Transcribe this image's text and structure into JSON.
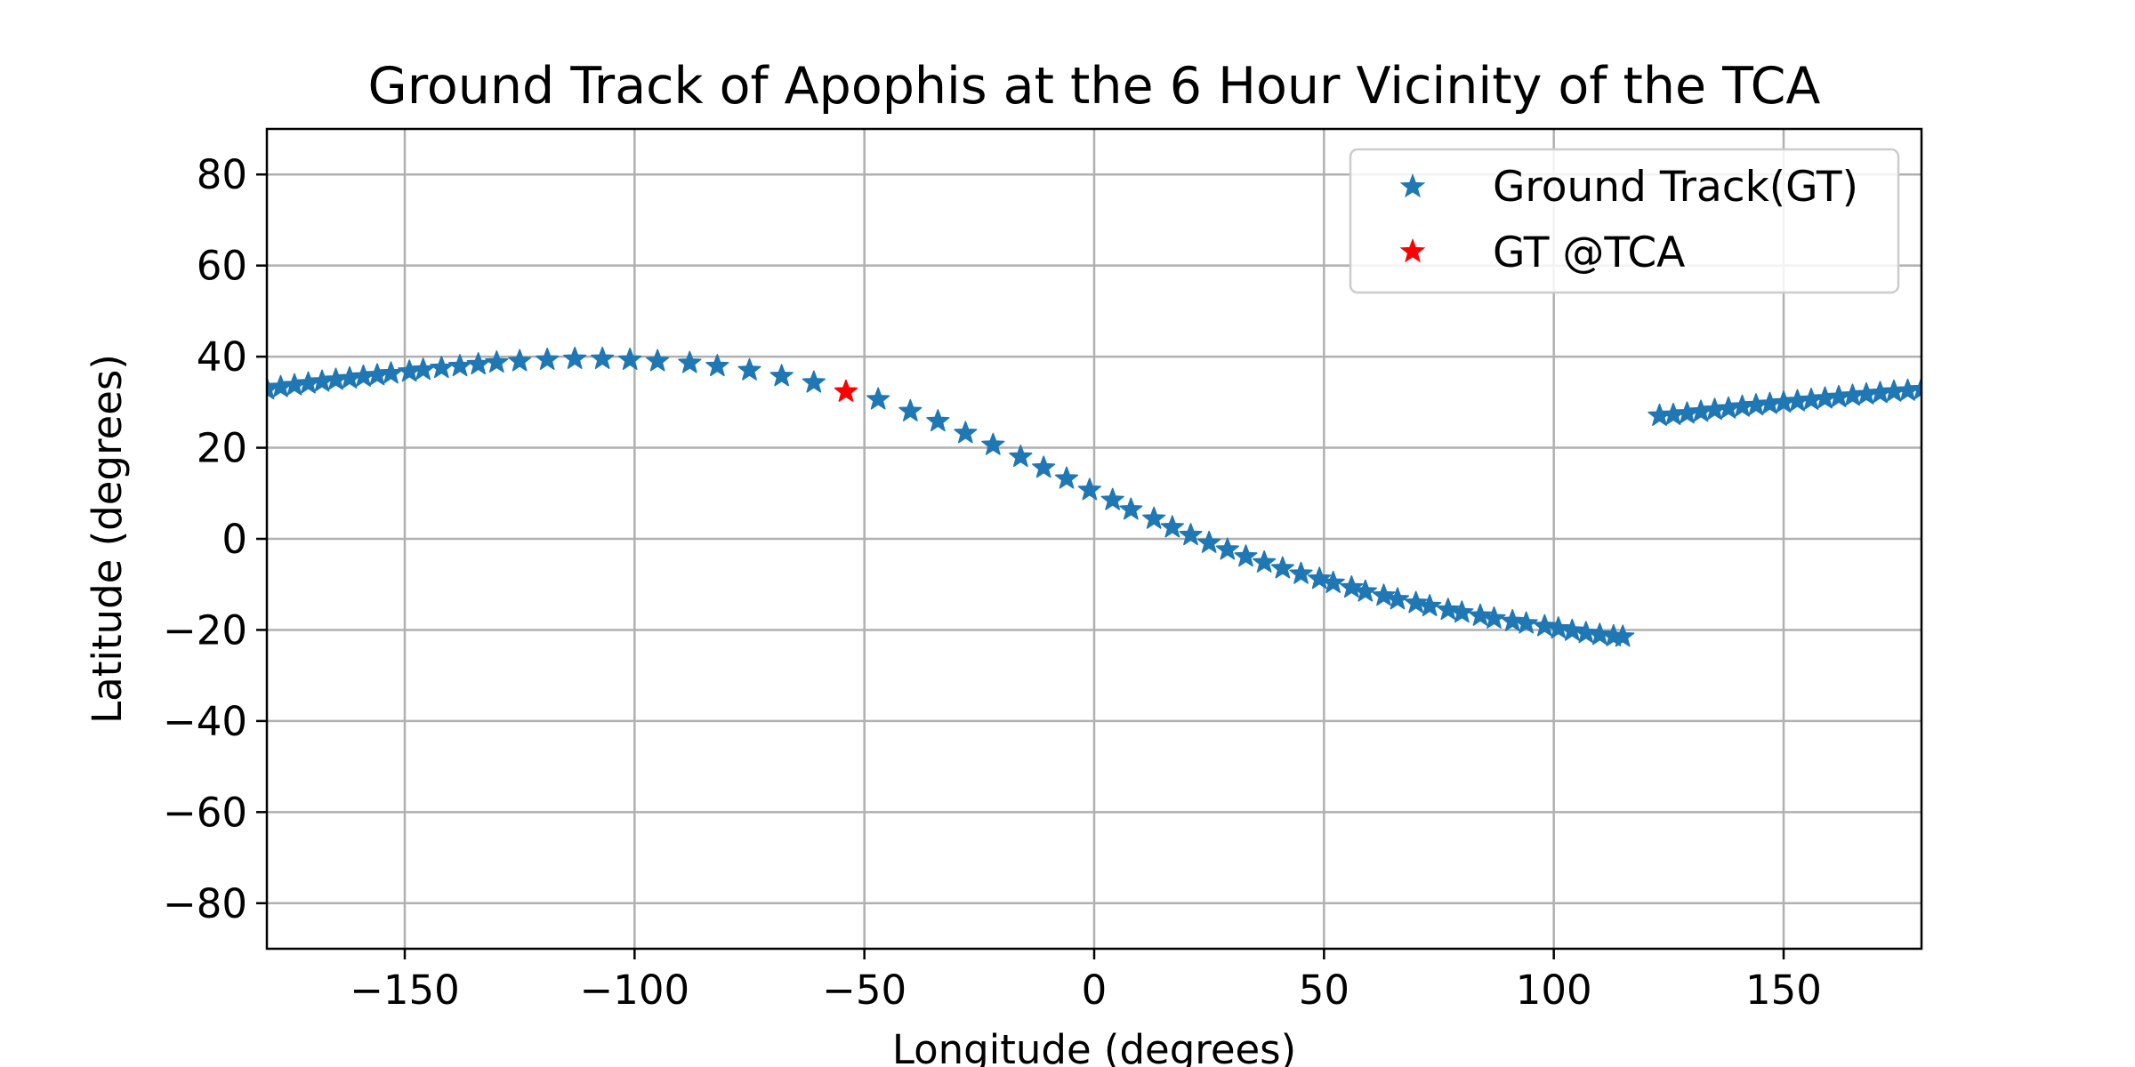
{
  "chart_data": {
    "type": "scatter",
    "title": "Ground Track of Apophis at the 6 Hour Vicinity of the TCA",
    "xlabel": "Longitude (degrees)",
    "ylabel": "Latitude (degrees)",
    "xlim": [
      -180,
      180
    ],
    "ylim": [
      -90,
      90
    ],
    "xticks": [
      -150,
      -100,
      -50,
      0,
      50,
      100,
      150
    ],
    "xtick_labels": [
      "−150",
      "−100",
      "−50",
      "0",
      "50",
      "100",
      "150"
    ],
    "yticks": [
      -80,
      -60,
      -40,
      -20,
      0,
      20,
      40,
      60,
      80
    ],
    "ytick_labels": [
      "−80",
      "−60",
      "−40",
      "−20",
      "0",
      "20",
      "40",
      "60",
      "80"
    ],
    "grid": true,
    "legend_position": "top-right",
    "marker": "star",
    "series": [
      {
        "name": "Ground Track(GT)",
        "color": "#1f77b4",
        "points": [
          [
            -180,
            32.8
          ],
          [
            -177,
            33.3
          ],
          [
            -174,
            33.7
          ],
          [
            -171,
            34.1
          ],
          [
            -168,
            34.5
          ],
          [
            -165,
            34.9
          ],
          [
            -162,
            35.2
          ],
          [
            -159,
            35.6
          ],
          [
            -156,
            35.9
          ],
          [
            -153,
            36.3
          ],
          [
            -149,
            36.7
          ],
          [
            -146,
            37.1
          ],
          [
            -142,
            37.5
          ],
          [
            -138,
            37.9
          ],
          [
            -134,
            38.3
          ],
          [
            -130,
            38.7
          ],
          [
            -125,
            39.0
          ],
          [
            -119,
            39.3
          ],
          [
            -113,
            39.5
          ],
          [
            -107,
            39.5
          ],
          [
            -101,
            39.3
          ],
          [
            -95,
            39.0
          ],
          [
            -88,
            38.6
          ],
          [
            -82,
            37.9
          ],
          [
            -75,
            37.0
          ],
          [
            -68,
            35.7
          ],
          [
            -61,
            34.3
          ],
          [
            -47,
            30.6
          ],
          [
            -40,
            28.0
          ],
          [
            -34,
            25.8
          ],
          [
            -28,
            23.2
          ],
          [
            -22,
            20.6
          ],
          [
            -16,
            18.0
          ],
          [
            -11,
            15.6
          ],
          [
            -6,
            13.2
          ],
          [
            -1,
            10.7
          ],
          [
            4,
            8.5
          ],
          [
            8,
            6.4
          ],
          [
            13,
            4.4
          ],
          [
            17,
            2.5
          ],
          [
            21,
            0.8
          ],
          [
            25,
            -0.9
          ],
          [
            29,
            -2.4
          ],
          [
            33,
            -3.9
          ],
          [
            37,
            -5.2
          ],
          [
            41,
            -6.5
          ],
          [
            45,
            -7.7
          ],
          [
            49,
            -8.8
          ],
          [
            52,
            -9.7
          ],
          [
            56,
            -10.7
          ],
          [
            59,
            -11.6
          ],
          [
            63,
            -12.5
          ],
          [
            66,
            -13.3
          ],
          [
            70,
            -14.1
          ],
          [
            73,
            -14.8
          ],
          [
            77,
            -15.6
          ],
          [
            80,
            -16.2
          ],
          [
            84,
            -16.9
          ],
          [
            87,
            -17.5
          ],
          [
            91,
            -18.1
          ],
          [
            94,
            -18.6
          ],
          [
            98,
            -19.2
          ],
          [
            101,
            -19.7
          ],
          [
            104,
            -20.2
          ],
          [
            107,
            -20.7
          ],
          [
            110,
            -21.1
          ],
          [
            113,
            -21.4
          ],
          [
            115,
            -21.5
          ],
          [
            123,
            27.0
          ],
          [
            126,
            27.2
          ],
          [
            129,
            27.5
          ],
          [
            132,
            27.9
          ],
          [
            135,
            28.3
          ],
          [
            138,
            28.6
          ],
          [
            141,
            29.0
          ],
          [
            144,
            29.3
          ],
          [
            147,
            29.6
          ],
          [
            150,
            29.9
          ],
          [
            153,
            30.2
          ],
          [
            156,
            30.5
          ],
          [
            159,
            30.8
          ],
          [
            162,
            31.1
          ],
          [
            165,
            31.4
          ],
          [
            168,
            31.7
          ],
          [
            171,
            32.0
          ],
          [
            174,
            32.3
          ],
          [
            177,
            32.5
          ],
          [
            180,
            32.8
          ]
        ]
      },
      {
        "name": "GT @TCA",
        "color": "#ff0000",
        "points": [
          [
            -54,
            32.3
          ]
        ]
      }
    ]
  }
}
